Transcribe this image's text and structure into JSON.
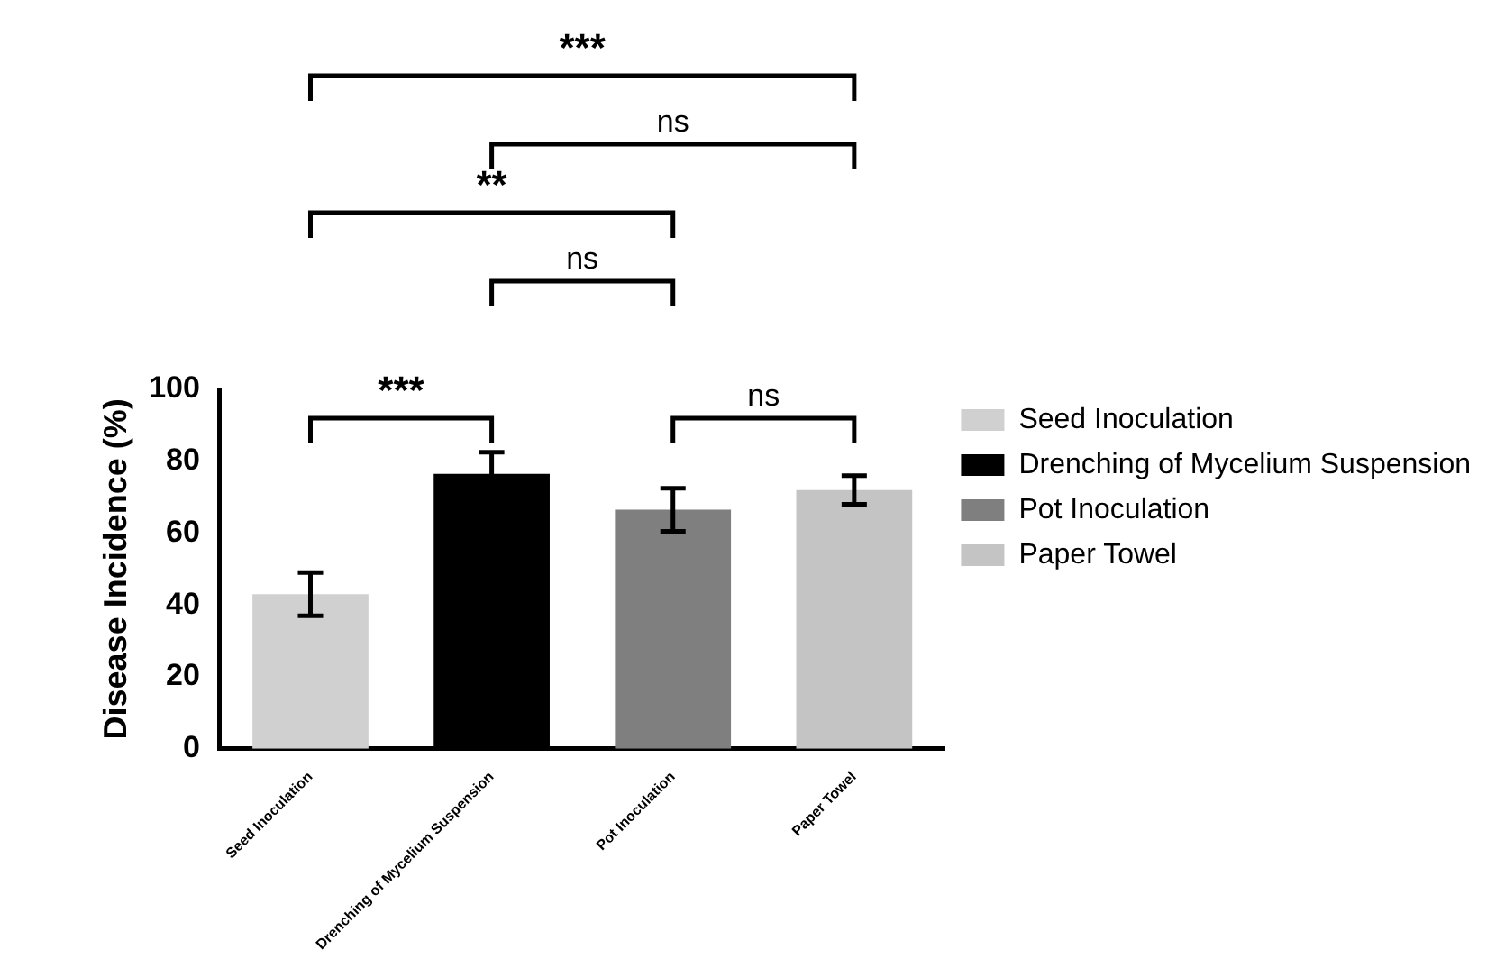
{
  "chart_data": {
    "type": "bar",
    "ylabel": "Disease Incidence (%)",
    "categories": [
      "Seed Inoculation",
      "Drenching of Mycelium Suspension",
      "Pot Inoculation",
      "Paper Towel"
    ],
    "stacked": true,
    "series": [
      {
        "name": "Seed Inoculation",
        "color": "#d0d0d0",
        "values": [
          43,
          null,
          null,
          null
        ],
        "errors": [
          6,
          null,
          null,
          null
        ]
      },
      {
        "name": "Drenching of Mycelium Suspension",
        "color": "#000000",
        "values": [
          null,
          76.5,
          null,
          null
        ],
        "errors": [
          null,
          6,
          null,
          null
        ]
      },
      {
        "name": "Pot Inoculation",
        "color": "#7f7f7f",
        "values": [
          null,
          null,
          66.5,
          null
        ],
        "errors": [
          null,
          null,
          6,
          null
        ]
      },
      {
        "name": "Paper Towel",
        "color": "#c4c4c4",
        "values": [
          null,
          null,
          null,
          72
        ],
        "errors": [
          null,
          null,
          null,
          4
        ]
      }
    ],
    "ylim": [
      0,
      100
    ],
    "yticks": [
      0,
      20,
      40,
      60,
      80,
      100
    ],
    "grid": false,
    "legend": "right",
    "annotations": [
      "***",
      "ns",
      "**",
      "ns",
      "***",
      "ns"
    ]
  }
}
